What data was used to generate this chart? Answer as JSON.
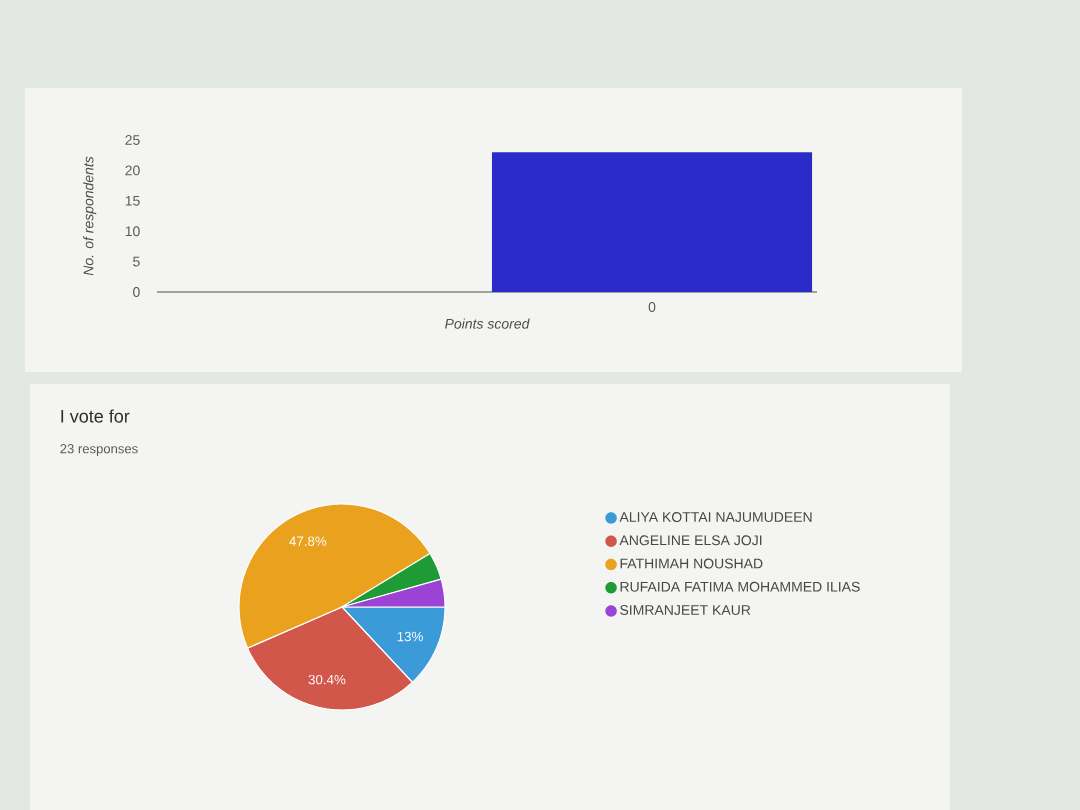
{
  "chart_data": [
    {
      "type": "bar",
      "xlabel": "Points scored",
      "ylabel": "No. of respondents",
      "categories": [
        null,
        "0"
      ],
      "values": [
        null,
        23
      ],
      "color": "#2b2bc9",
      "ylim": [
        0,
        25
      ],
      "yticks": [
        0,
        5,
        10,
        15,
        20,
        25
      ]
    },
    {
      "type": "pie",
      "title": "I vote for",
      "subtitle": "23 responses",
      "categories": [
        "ALIYA KOTTAI NAJUMUDEEN",
        "ANGELINE ELSA JOJI",
        "FATHIMAH NOUSHAD",
        "RUFAIDA FATIMA MOHAMMED ILIAS",
        "SIMRANJEET KAUR"
      ],
      "values": [
        13.04,
        30.43,
        47.83,
        4.35,
        4.35
      ],
      "value_labels": [
        "13%",
        "30.4%",
        "47.8%",
        null,
        null
      ],
      "colors": [
        "#3a9bd8",
        "#d2574b",
        "#eaa21e",
        "#1f9b35",
        "#9c42d4"
      ],
      "legend": "right"
    }
  ]
}
